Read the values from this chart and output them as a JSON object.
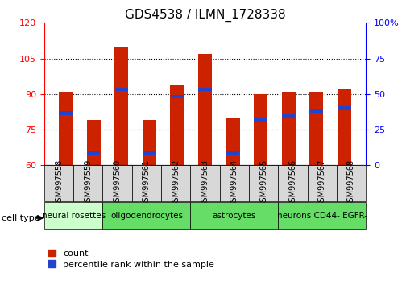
{
  "title": "GDS4538 / ILMN_1728338",
  "samples": [
    "GSM997558",
    "GSM997559",
    "GSM997560",
    "GSM997561",
    "GSM997562",
    "GSM997563",
    "GSM997564",
    "GSM997565",
    "GSM997566",
    "GSM997567",
    "GSM997568"
  ],
  "bar_heights": [
    91,
    79,
    110,
    79,
    94,
    107,
    80,
    90,
    91,
    91,
    92
  ],
  "blue_positions": [
    82,
    65,
    92,
    65,
    89,
    92,
    65,
    79,
    81,
    83,
    84
  ],
  "ylim_left": [
    60,
    120
  ],
  "ylim_right": [
    0,
    100
  ],
  "yticks_left": [
    60,
    75,
    90,
    105,
    120
  ],
  "yticks_right": [
    0,
    25,
    50,
    75,
    100
  ],
  "grid_values": [
    75,
    90,
    105
  ],
  "cell_types": [
    {
      "label": "neural rosettes",
      "span": [
        0,
        2
      ],
      "color": "#ccffcc"
    },
    {
      "label": "oligodendrocytes",
      "span": [
        2,
        5
      ],
      "color": "#66dd66"
    },
    {
      "label": "astrocytes",
      "span": [
        5,
        8
      ],
      "color": "#66dd66"
    },
    {
      "label": "neurons CD44- EGFR-",
      "span": [
        8,
        11
      ],
      "color": "#66dd66"
    }
  ],
  "bar_color": "#cc2200",
  "blue_color": "#2244cc",
  "bar_width": 0.5,
  "tick_label_fontsize": 7,
  "title_fontsize": 11,
  "legend_fontsize": 8,
  "cell_type_label_fontsize": 7.5
}
